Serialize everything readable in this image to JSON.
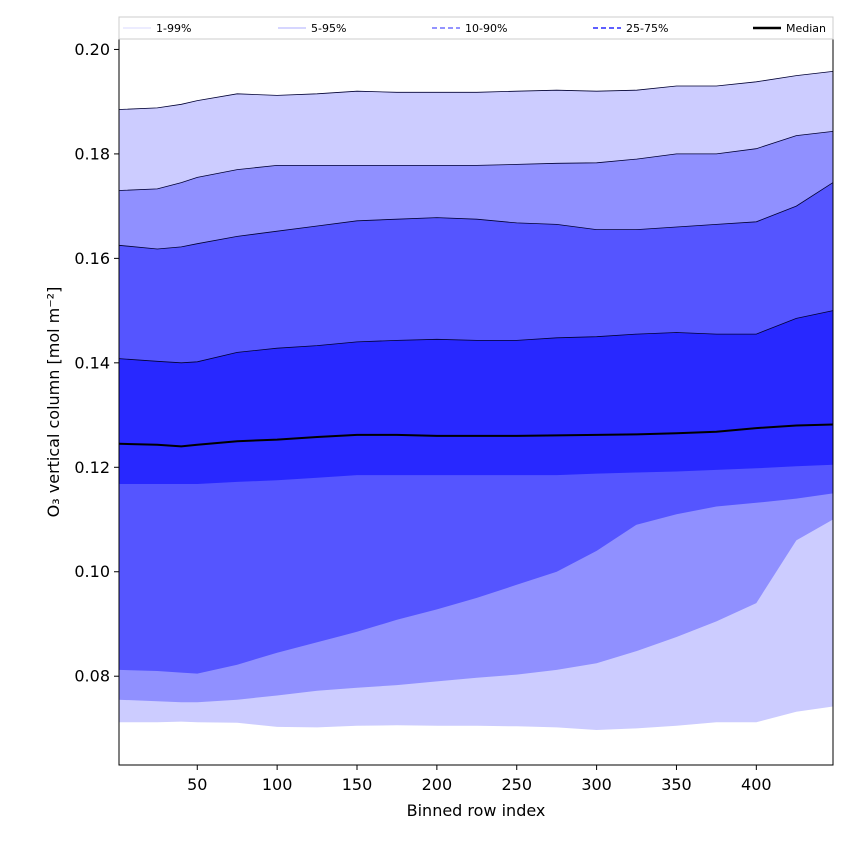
{
  "chart_data": {
    "type": "area",
    "title": "",
    "xlabel": "Binned row index",
    "ylabel": "O₃ vertical column [mol m⁻²]",
    "xlim": [
      1,
      448
    ],
    "ylim": [
      0.063,
      0.202
    ],
    "xticks": [
      50,
      100,
      150,
      200,
      250,
      300,
      350,
      400
    ],
    "yticks": [
      0.08,
      0.1,
      0.12,
      0.14,
      0.16,
      0.18,
      0.2
    ],
    "xtick_labels": [
      "50",
      "100",
      "150",
      "200",
      "250",
      "300",
      "350",
      "400"
    ],
    "ytick_labels": [
      "0.08",
      "0.10",
      "0.12",
      "0.14",
      "0.16",
      "0.18",
      "0.20"
    ],
    "legend": {
      "placement": "top",
      "entries": [
        "1-99%",
        "5-95%",
        "10-90%",
        "25-75%",
        "Median"
      ]
    },
    "x": [
      1,
      25,
      40,
      50,
      75,
      100,
      125,
      150,
      175,
      200,
      225,
      250,
      275,
      300,
      325,
      350,
      375,
      400,
      425,
      448
    ],
    "bands": [
      {
        "name": "1-99%",
        "color": "#ccccff",
        "edge_color": "#000033",
        "lower": [
          0.0712,
          0.0712,
          0.0713,
          0.0712,
          0.0711,
          0.0703,
          0.0702,
          0.0705,
          0.0706,
          0.0705,
          0.0705,
          0.0704,
          0.0702,
          0.0697,
          0.07,
          0.0705,
          0.0712,
          0.0712,
          0.0732,
          0.0742
        ],
        "upper": [
          0.1885,
          0.1888,
          0.1895,
          0.1902,
          0.1915,
          0.1912,
          0.1915,
          0.192,
          0.1918,
          0.1918,
          0.1918,
          0.192,
          0.1922,
          0.192,
          0.1922,
          0.193,
          0.193,
          0.1938,
          0.195,
          0.1958
        ]
      },
      {
        "name": "5-95%",
        "color": "#9090ff",
        "edge_color": "#000033",
        "lower": [
          0.0755,
          0.0752,
          0.075,
          0.075,
          0.0755,
          0.0763,
          0.0772,
          0.0778,
          0.0783,
          0.079,
          0.0797,
          0.0803,
          0.0812,
          0.0825,
          0.0848,
          0.0875,
          0.0905,
          0.094,
          0.106,
          0.11
        ],
        "upper": [
          0.173,
          0.1733,
          0.1745,
          0.1755,
          0.177,
          0.1778,
          0.1778,
          0.1778,
          0.1778,
          0.1778,
          0.1778,
          0.178,
          0.1782,
          0.1783,
          0.179,
          0.18,
          0.18,
          0.181,
          0.1835,
          0.1843
        ]
      },
      {
        "name": "10-90%",
        "color": "#5555ff",
        "edge_color": "#000033",
        "lower": [
          0.0812,
          0.081,
          0.0807,
          0.0805,
          0.0822,
          0.0845,
          0.0865,
          0.0885,
          0.0908,
          0.0928,
          0.095,
          0.0975,
          0.1,
          0.104,
          0.109,
          0.111,
          0.1125,
          0.1132,
          0.114,
          0.115
        ],
        "upper": [
          0.1625,
          0.1618,
          0.1622,
          0.1628,
          0.1642,
          0.1652,
          0.1662,
          0.1672,
          0.1675,
          0.1678,
          0.1675,
          0.1668,
          0.1665,
          0.1655,
          0.1655,
          0.166,
          0.1665,
          0.167,
          0.17,
          0.1745
        ]
      },
      {
        "name": "25-75%",
        "color": "#2828ff",
        "edge_color": "#000033",
        "lower": [
          0.1168,
          0.1168,
          0.1168,
          0.1168,
          0.1172,
          0.1175,
          0.118,
          0.1185,
          0.1185,
          0.1185,
          0.1185,
          0.1185,
          0.1185,
          0.1188,
          0.119,
          0.1192,
          0.1195,
          0.1198,
          0.1202,
          0.1205
        ],
        "upper": [
          0.1408,
          0.1403,
          0.14,
          0.1402,
          0.142,
          0.1428,
          0.1433,
          0.144,
          0.1443,
          0.1445,
          0.1443,
          0.1443,
          0.1448,
          0.145,
          0.1455,
          0.1458,
          0.1455,
          0.1455,
          0.1485,
          0.15
        ]
      }
    ],
    "median": {
      "name": "Median",
      "color": "#000000",
      "values": [
        0.1245,
        0.1243,
        0.124,
        0.1243,
        0.125,
        0.1253,
        0.1258,
        0.1262,
        0.1262,
        0.126,
        0.126,
        0.126,
        0.1261,
        0.1262,
        0.1263,
        0.1265,
        0.1268,
        0.1275,
        0.128,
        0.1282
      ]
    },
    "legend_styles": {
      "1-99%": "#ccccff",
      "5-95%": "#9090ff",
      "10-90%": "#5555ff",
      "25-75%": "#2828ff",
      "Median": "#000000"
    },
    "grid": false
  }
}
